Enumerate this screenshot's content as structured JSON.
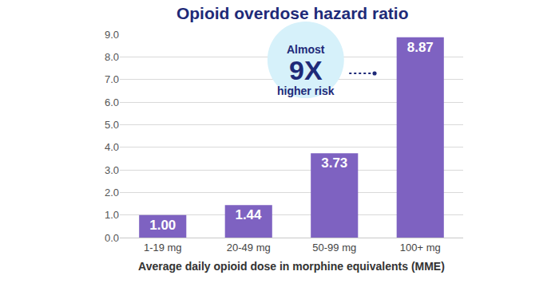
{
  "chart_data": {
    "type": "bar",
    "title": "Opioid overdose hazard ratio",
    "xlabel": "Average daily opioid dose in morphine equivalents (MME)",
    "categories": [
      "1-19 mg",
      "20-49 mg",
      "50-99 mg",
      "100+ mg"
    ],
    "values": [
      1.0,
      1.44,
      3.73,
      8.87
    ],
    "value_labels": [
      "1.00",
      "1.44",
      "3.73",
      "8.87"
    ],
    "data_labels": true,
    "color": "#7e62c1",
    "ylim": [
      0,
      9
    ],
    "yticks": [
      {
        "value": 0,
        "label": "0.0"
      },
      {
        "value": 1,
        "label": "1.0"
      },
      {
        "value": 2,
        "label": "2.0"
      },
      {
        "value": 3,
        "label": "3.0"
      },
      {
        "value": 4,
        "label": "4.0"
      },
      {
        "value": 5,
        "label": "5.0"
      },
      {
        "value": 6,
        "label": "6.0"
      },
      {
        "value": 7,
        "label": "7.0"
      },
      {
        "value": 8,
        "label": "8.0"
      },
      {
        "value": 9,
        "label": "9.0"
      }
    ],
    "grid": true,
    "annotation": [
      "Almost",
      "9X",
      "higher risk"
    ]
  }
}
